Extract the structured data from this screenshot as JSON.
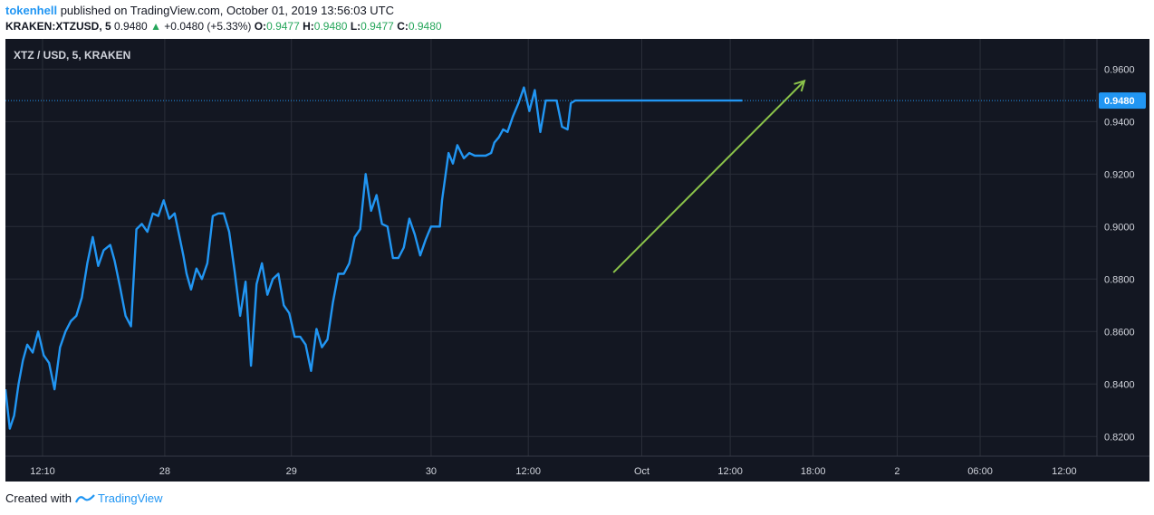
{
  "header": {
    "author": "tokenhell",
    "published_text": " published on TradingView.com, October 01, 2019 13:56:03 UTC",
    "symbol": "KRAKEN:XTZUSD, 5",
    "last": "0.9480",
    "change": "+0.0480 (+5.33%)",
    "o_label": "O:",
    "o_value": "0.9477",
    "h_label": "H:",
    "h_value": "0.9480",
    "l_label": "L:",
    "l_value": "0.9477",
    "c_label": "C:",
    "c_value": "0.9480"
  },
  "footer": {
    "created_with": "Created with",
    "brand": "TradingView"
  },
  "colors": {
    "background": "#131722",
    "line": "#2196f3",
    "arrow": "#8bc34a",
    "grid": "#2a2e39",
    "up": "#26a65b"
  },
  "chart_data": {
    "type": "line",
    "title": "XTZ / USD, 5, KRAKEN",
    "ylim": [
      0.8125,
      0.9715
    ],
    "xlim": [
      0,
      1000
    ],
    "y_ticks": [
      "0.9600",
      "0.9400",
      "0.9200",
      "0.9000",
      "0.8800",
      "0.8600",
      "0.8400",
      "0.8200"
    ],
    "y_tick_values": [
      0.96,
      0.94,
      0.92,
      0.9,
      0.88,
      0.86,
      0.84,
      0.82
    ],
    "x_tick_labels": [
      "12:10",
      "28",
      "29",
      "30",
      "12:00",
      "Oct",
      "12:00",
      "18:00",
      "2",
      "06:00",
      "12:00"
    ],
    "x_tick_positions": [
      34,
      146,
      262,
      390,
      479,
      583,
      664,
      740,
      817,
      893,
      970
    ],
    "last_price_label": "0.9480",
    "last_price": 0.948,
    "series": [
      {
        "x": [
          0,
          4,
          8,
          12,
          16,
          20,
          25,
          30,
          35,
          40,
          45,
          50,
          55,
          60,
          65,
          70,
          75,
          80,
          85,
          90,
          96,
          100,
          105,
          110,
          115,
          120,
          125,
          130,
          135,
          140,
          145,
          150,
          155,
          160,
          163,
          166,
          170,
          175,
          180,
          185,
          190,
          195,
          200,
          205,
          210,
          215,
          220,
          225,
          230,
          235,
          240,
          245,
          250,
          255,
          260,
          265,
          270,
          275,
          280,
          285,
          290,
          295,
          300,
          305,
          310,
          315,
          320,
          325,
          330,
          335,
          340,
          345,
          350,
          355,
          360,
          365,
          370,
          375,
          380,
          385,
          390,
          395,
          398,
          400,
          403,
          406,
          410,
          414,
          420,
          425,
          430,
          435,
          440,
          445,
          448,
          452,
          456,
          460,
          465,
          470,
          475,
          480,
          485,
          490,
          495,
          500,
          505,
          510,
          515,
          518,
          522,
          526,
          530,
          535,
          540,
          543,
          545,
          548,
          550,
          553,
          555,
          560,
          565,
          570,
          575,
          580,
          585,
          590,
          595,
          600,
          602,
          605,
          610,
          615,
          620,
          625,
          630,
          635,
          640,
          645,
          650,
          654,
          658,
          661,
          664,
          666,
          668,
          670,
          675
        ],
        "values": [
          0.838,
          0.823,
          0.828,
          0.84,
          0.849,
          0.855,
          0.852,
          0.86,
          0.851,
          0.848,
          0.838,
          0.854,
          0.86,
          0.864,
          0.866,
          0.873,
          0.886,
          0.896,
          0.885,
          0.891,
          0.893,
          0.887,
          0.877,
          0.866,
          0.862,
          0.899,
          0.901,
          0.898,
          0.905,
          0.904,
          0.91,
          0.903,
          0.905,
          0.895,
          0.889,
          0.882,
          0.876,
          0.884,
          0.88,
          0.886,
          0.904,
          0.905,
          0.905,
          0.898,
          0.883,
          0.866,
          0.879,
          0.847,
          0.878,
          0.886,
          0.874,
          0.88,
          0.882,
          0.87,
          0.867,
          0.858,
          0.858,
          0.855,
          0.845,
          0.861,
          0.854,
          0.857,
          0.871,
          0.882,
          0.882,
          0.886,
          0.896,
          0.899,
          0.92,
          0.906,
          0.912,
          0.901,
          0.9,
          0.888,
          0.888,
          0.892,
          0.903,
          0.897,
          0.889,
          0.895,
          0.9,
          0.9,
          0.9,
          0.91,
          0.919,
          0.928,
          0.924,
          0.931,
          0.926,
          0.928,
          0.927,
          0.927,
          0.927,
          0.928,
          0.932,
          0.934,
          0.937,
          0.936,
          0.942,
          0.947,
          0.953,
          0.944,
          0.952,
          0.936,
          0.948,
          0.948,
          0.948,
          0.938,
          0.937,
          0.947,
          0.948,
          0.948,
          0.948,
          0.948,
          0.948,
          0.948,
          0.948,
          0.948,
          0.948,
          0.948,
          0.948,
          0.948,
          0.948,
          0.948,
          0.948,
          0.948,
          0.948,
          0.948,
          0.948,
          0.948,
          0.948,
          0.948,
          0.948,
          0.948,
          0.948,
          0.948,
          0.948,
          0.948,
          0.948,
          0.948,
          0.948,
          0.948,
          0.948,
          0.948,
          0.948,
          0.948,
          0.948,
          0.948,
          0.948
        ]
      }
    ],
    "annotations": [
      {
        "type": "arrow",
        "x1": 557,
        "y1": 0.8825,
        "x2": 732,
        "y2": 0.9555
      }
    ]
  }
}
